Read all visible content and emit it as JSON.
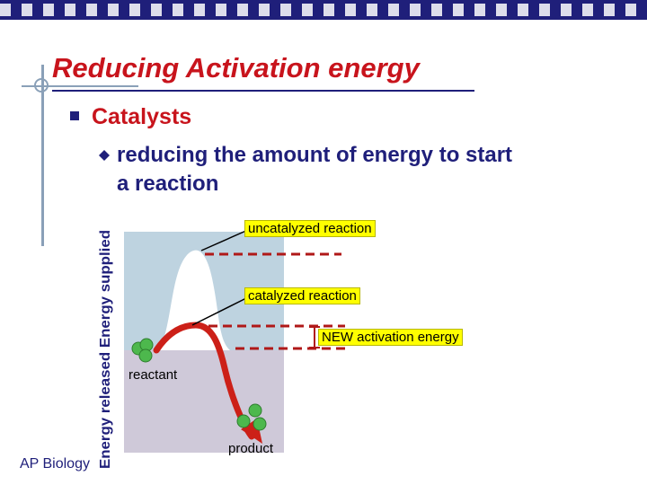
{
  "slide": {
    "title": "Reducing Activation energy",
    "bullet_level1": "Catalysts",
    "bullet_level2": "reducing the amount of energy to start a reaction",
    "footer": "AP Biology"
  },
  "diagram": {
    "axis_label": "Energy released Energy supplied",
    "labels": {
      "uncatalyzed": "uncatalyzed reaction",
      "catalyzed": "catalyzed reaction",
      "new_activation": "NEW activation energy",
      "reactant": "reactant",
      "product": "product"
    },
    "colors": {
      "upper_panel": "#bed3e0",
      "lower_panel": "#cfc9d9",
      "curve_arrow": "#cc2018",
      "dashed_line": "#b01818",
      "highlight": "#ffff00",
      "molecule": "#4db84d"
    }
  }
}
